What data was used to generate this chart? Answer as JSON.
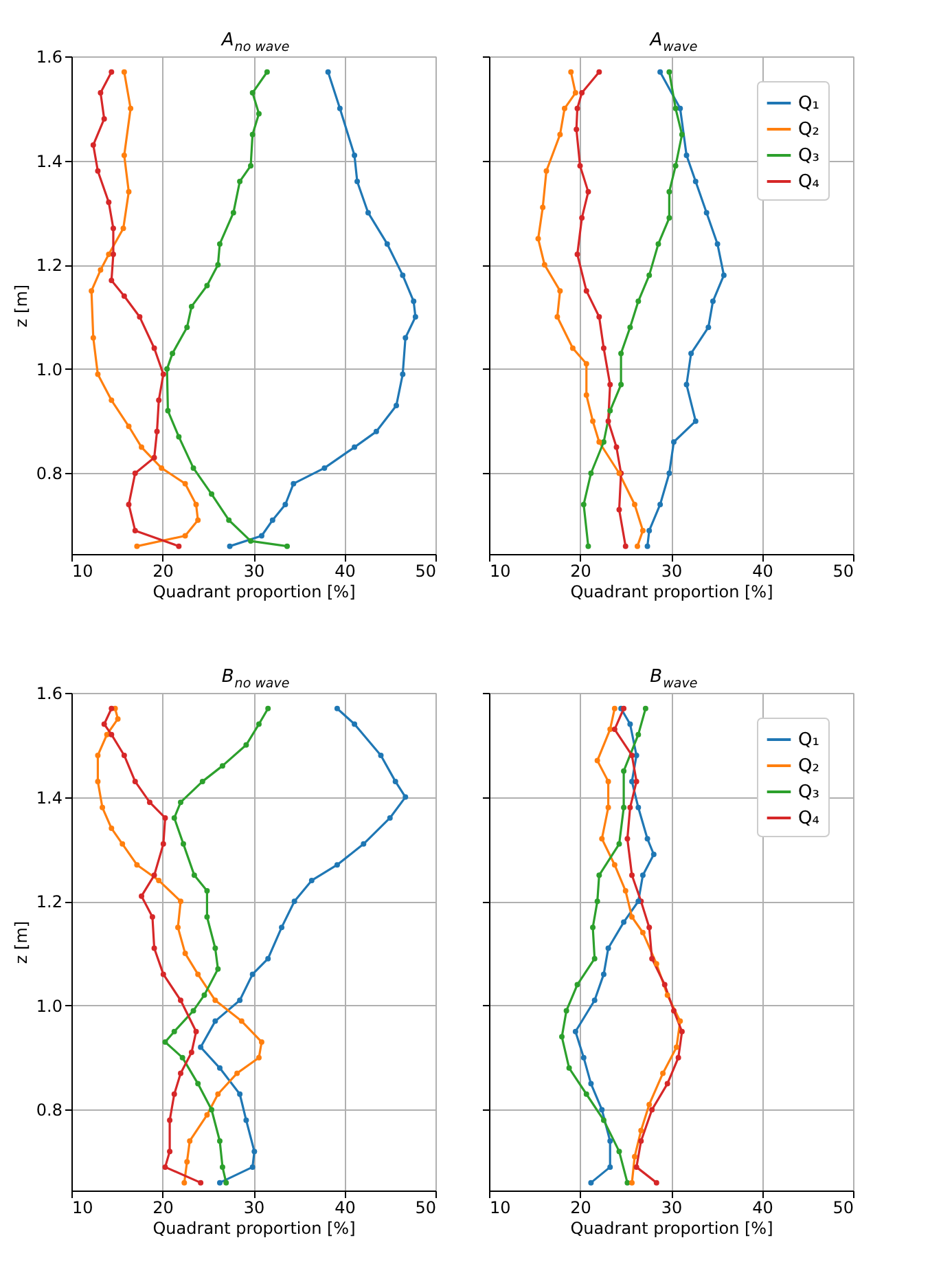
{
  "chart_data": [
    {
      "type": "line",
      "title": "A$_{no wave}$",
      "xlabel": "Quadrant proportion [%]",
      "ylabel": "z [m]",
      "xlim": [
        10,
        50
      ],
      "xticks": [
        10,
        20,
        30,
        40,
        50
      ],
      "ylim": [
        0.645,
        1.6
      ],
      "yticks": [
        0.8,
        {
          "value": 1,
          "label": "1.0"
        },
        1.2,
        1.4,
        1.6
      ],
      "grid": true,
      "marker": "circle",
      "series": [
        {
          "color": "#1f77b4",
          "x": [
            38.2,
            39.5,
            41.1,
            41.4,
            42.6,
            44.7,
            46.4,
            47.6,
            47.8,
            46.7,
            46.4,
            45.7,
            43.5,
            41.1,
            37.8,
            34.4,
            33.5,
            32.1,
            30.9,
            27.4
          ],
          "values": [
            1.57,
            1.5,
            1.41,
            1.36,
            1.3,
            1.24,
            1.18,
            1.13,
            1.1,
            1.06,
            0.99,
            0.93,
            0.88,
            0.85,
            0.81,
            0.78,
            0.74,
            0.71,
            0.68,
            0.66
          ]
        },
        {
          "color": "#ff7f0e",
          "x": [
            15.8,
            16.5,
            15.8,
            16.3,
            15.7,
            14.1,
            13.2,
            12.2,
            12.4,
            12.9,
            14.4,
            16.3,
            17.7,
            19.9,
            22.5,
            23.7,
            23.9,
            22.5,
            17.2
          ],
          "values": [
            1.57,
            1.5,
            1.41,
            1.34,
            1.27,
            1.22,
            1.19,
            1.15,
            1.06,
            0.99,
            0.94,
            0.89,
            0.85,
            0.81,
            0.78,
            0.74,
            0.71,
            0.68,
            0.66
          ]
        },
        {
          "color": "#2ca02c",
          "x": [
            31.5,
            29.9,
            30.6,
            29.9,
            29.7,
            28.5,
            27.8,
            26.3,
            26.1,
            24.9,
            23.2,
            22.7,
            21.1,
            20.5,
            20.6,
            21.8,
            23.4,
            25.4,
            27.3,
            29.7,
            33.7
          ],
          "values": [
            1.57,
            1.53,
            1.49,
            1.45,
            1.39,
            1.36,
            1.3,
            1.24,
            1.2,
            1.16,
            1.12,
            1.08,
            1.03,
            1.0,
            0.92,
            0.87,
            0.81,
            0.76,
            0.71,
            0.67,
            0.66
          ]
        },
        {
          "color": "#d62728",
          "x": [
            14.4,
            13.2,
            13.6,
            12.4,
            12.9,
            14.1,
            14.6,
            14.6,
            14.4,
            15.8,
            17.5,
            19.1,
            20.1,
            19.6,
            19.4,
            19.1,
            17.0,
            16.3,
            17.0,
            21.8
          ],
          "values": [
            1.57,
            1.53,
            1.48,
            1.43,
            1.38,
            1.32,
            1.27,
            1.22,
            1.17,
            1.14,
            1.1,
            1.04,
            0.99,
            0.94,
            0.88,
            0.83,
            0.8,
            0.74,
            0.69,
            0.66
          ]
        }
      ]
    },
    {
      "type": "line",
      "title": "A$_{wave}$",
      "xlabel": "Quadrant proportion [%]",
      "xlim": [
        10,
        50
      ],
      "xticks": [
        10,
        20,
        30,
        40,
        50
      ],
      "ylim": [
        0.645,
        1.6
      ],
      "yticks": [
        0.8,
        1.0,
        1.2,
        1.4,
        1.6
      ],
      "grid": true,
      "marker": "circle",
      "legend": "top right",
      "tick_labels": "x",
      "series": [
        {
          "name": "Q₁",
          "color": "#1f77b4",
          "x": [
            28.8,
            31.0,
            31.7,
            32.7,
            33.9,
            35.1,
            35.8,
            34.6,
            34.1,
            32.2,
            31.7,
            32.7,
            30.3,
            29.8,
            28.8,
            27.6,
            27.4
          ],
          "values": [
            1.57,
            1.5,
            1.41,
            1.36,
            1.3,
            1.24,
            1.18,
            1.13,
            1.08,
            1.03,
            0.97,
            0.9,
            0.86,
            0.8,
            0.74,
            0.69,
            0.66
          ]
        },
        {
          "name": "Q₂",
          "color": "#ff7f0e",
          "x": [
            19.0,
            19.5,
            18.3,
            17.8,
            16.3,
            15.9,
            15.4,
            16.1,
            17.8,
            17.5,
            19.2,
            20.7,
            20.7,
            21.4,
            22.1,
            24.3,
            26.0,
            26.9,
            26.3
          ],
          "values": [
            1.57,
            1.53,
            1.5,
            1.45,
            1.38,
            1.31,
            1.25,
            1.2,
            1.15,
            1.1,
            1.04,
            1.01,
            0.95,
            0.9,
            0.86,
            0.8,
            0.74,
            0.69,
            0.66
          ]
        },
        {
          "name": "Q₃",
          "color": "#2ca02c",
          "x": [
            29.8,
            30.5,
            31.2,
            30.5,
            29.8,
            29.8,
            28.6,
            27.6,
            26.4,
            25.5,
            24.5,
            24.5,
            23.3,
            22.6,
            21.2,
            20.4,
            20.9
          ],
          "values": [
            1.57,
            1.5,
            1.45,
            1.39,
            1.34,
            1.29,
            1.24,
            1.18,
            1.13,
            1.08,
            1.03,
            0.97,
            0.92,
            0.86,
            0.8,
            0.74,
            0.66
          ]
        },
        {
          "name": "Q₄",
          "color": "#d62728",
          "x": [
            22.1,
            20.2,
            19.7,
            19.6,
            20.0,
            20.9,
            20.2,
            19.7,
            20.7,
            22.1,
            22.6,
            23.3,
            23.1,
            24.0,
            24.5,
            24.3,
            25.0
          ],
          "values": [
            1.57,
            1.53,
            1.5,
            1.46,
            1.39,
            1.34,
            1.29,
            1.22,
            1.15,
            1.1,
            1.04,
            0.97,
            0.9,
            0.85,
            0.8,
            0.73,
            0.66
          ]
        }
      ]
    },
    {
      "type": "line",
      "title": "B$_{no wave}$",
      "xlabel": "Quadrant proportion [%]",
      "ylabel": "z [m]",
      "xlim": [
        10,
        50
      ],
      "xticks": [
        10,
        20,
        30,
        40,
        50
      ],
      "ylim": [
        0.645,
        1.6
      ],
      "yticks": [
        0.8,
        {
          "value": 1,
          "label": "1.0"
        },
        1.2,
        1.4,
        1.6
      ],
      "grid": true,
      "marker": "circle",
      "series": [
        {
          "color": "#1f77b4",
          "x": [
            39.2,
            41.1,
            44.0,
            45.6,
            46.7,
            45.0,
            42.1,
            39.2,
            36.4,
            34.5,
            33.1,
            31.6,
            29.9,
            28.5,
            25.8,
            24.2,
            26.3,
            28.5,
            29.2,
            30.1,
            29.9,
            26.3
          ],
          "values": [
            1.57,
            1.54,
            1.48,
            1.43,
            1.4,
            1.36,
            1.31,
            1.27,
            1.24,
            1.2,
            1.15,
            1.09,
            1.06,
            1.01,
            0.97,
            0.92,
            0.88,
            0.83,
            0.78,
            0.72,
            0.69,
            0.66
          ]
        },
        {
          "color": "#ff7f0e",
          "x": [
            14.8,
            15.1,
            13.9,
            12.9,
            12.9,
            13.4,
            14.4,
            15.6,
            17.2,
            19.6,
            22.0,
            21.7,
            22.5,
            23.9,
            25.8,
            28.7,
            30.9,
            30.6,
            28.2,
            26.1,
            24.9,
            23.0,
            22.7,
            22.4
          ],
          "values": [
            1.57,
            1.55,
            1.52,
            1.48,
            1.43,
            1.38,
            1.34,
            1.31,
            1.27,
            1.24,
            1.2,
            1.15,
            1.1,
            1.06,
            1.01,
            0.97,
            0.93,
            0.9,
            0.87,
            0.83,
            0.79,
            0.74,
            0.7,
            0.66
          ]
        },
        {
          "color": "#2ca02c",
          "x": [
            31.6,
            30.6,
            29.2,
            26.6,
            24.4,
            22.0,
            21.3,
            22.3,
            23.5,
            24.9,
            24.9,
            25.8,
            26.1,
            24.6,
            23.4,
            21.3,
            20.3,
            22.2,
            23.9,
            25.4,
            26.3,
            26.6,
            27.0
          ],
          "values": [
            1.57,
            1.54,
            1.5,
            1.46,
            1.43,
            1.39,
            1.36,
            1.31,
            1.25,
            1.22,
            1.17,
            1.11,
            1.07,
            1.02,
            0.99,
            0.95,
            0.93,
            0.9,
            0.85,
            0.8,
            0.74,
            0.69,
            0.66
          ]
        },
        {
          "color": "#d62728",
          "x": [
            14.4,
            13.6,
            14.4,
            15.8,
            17.0,
            18.6,
            20.3,
            20.1,
            19.1,
            17.7,
            18.9,
            19.1,
            20.1,
            22.0,
            23.7,
            23.2,
            22.0,
            21.3,
            20.8,
            20.8,
            20.3,
            24.2
          ],
          "values": [
            1.57,
            1.54,
            1.52,
            1.48,
            1.43,
            1.39,
            1.36,
            1.31,
            1.25,
            1.21,
            1.17,
            1.11,
            1.06,
            1.01,
            0.95,
            0.91,
            0.87,
            0.83,
            0.78,
            0.72,
            0.69,
            0.66
          ]
        }
      ]
    },
    {
      "type": "line",
      "title": "B$_{wave}$",
      "xlabel": "Quadrant proportion [%]",
      "xlim": [
        10,
        50
      ],
      "xticks": [
        10,
        20,
        30,
        40,
        50
      ],
      "ylim": [
        0.645,
        1.6
      ],
      "yticks": [
        0.8,
        1.0,
        1.2,
        1.4,
        1.6
      ],
      "grid": true,
      "marker": "circle",
      "legend": "top right",
      "tick_labels": "x",
      "series": [
        {
          "name": "Q₁",
          "color": "#1f77b4",
          "x": [
            24.5,
            25.5,
            26.2,
            25.7,
            26.4,
            27.4,
            28.1,
            26.9,
            26.4,
            24.8,
            23.1,
            22.6,
            21.6,
            19.5,
            20.4,
            21.2,
            22.4,
            23.3,
            23.3,
            21.2
          ],
          "values": [
            1.57,
            1.54,
            1.48,
            1.43,
            1.38,
            1.32,
            1.29,
            1.25,
            1.2,
            1.16,
            1.11,
            1.06,
            1.01,
            0.95,
            0.9,
            0.85,
            0.8,
            0.74,
            0.69,
            0.66
          ]
        },
        {
          "name": "Q₂",
          "color": "#ff7f0e",
          "x": [
            23.8,
            23.3,
            21.9,
            23.1,
            23.1,
            22.4,
            23.8,
            25.0,
            25.7,
            26.9,
            28.4,
            29.6,
            31.0,
            30.6,
            29.1,
            27.6,
            26.7,
            26.0,
            25.7
          ],
          "values": [
            1.57,
            1.53,
            1.47,
            1.43,
            1.38,
            1.32,
            1.27,
            1.22,
            1.17,
            1.14,
            1.08,
            1.02,
            0.97,
            0.92,
            0.87,
            0.81,
            0.76,
            0.71,
            0.66
          ]
        },
        {
          "name": "Q₃",
          "color": "#2ca02c",
          "x": [
            27.2,
            26.4,
            24.8,
            24.8,
            24.3,
            22.1,
            21.9,
            21.4,
            21.6,
            19.7,
            18.5,
            18.0,
            18.8,
            20.7,
            22.6,
            24.3,
            25.2
          ],
          "values": [
            1.57,
            1.52,
            1.45,
            1.38,
            1.31,
            1.25,
            1.2,
            1.15,
            1.09,
            1.04,
            0.99,
            0.94,
            0.88,
            0.83,
            0.78,
            0.72,
            0.66
          ]
        },
        {
          "name": "Q₄",
          "color": "#d62728",
          "x": [
            24.8,
            23.8,
            25.7,
            26.2,
            25.5,
            25.2,
            25.7,
            26.7,
            27.6,
            27.9,
            29.3,
            30.3,
            31.2,
            30.8,
            29.6,
            27.9,
            26.7,
            26.2,
            28.4
          ],
          "values": [
            1.57,
            1.53,
            1.48,
            1.43,
            1.38,
            1.32,
            1.25,
            1.2,
            1.15,
            1.09,
            1.04,
            0.99,
            0.95,
            0.9,
            0.85,
            0.8,
            0.74,
            0.69,
            0.66
          ]
        }
      ]
    }
  ]
}
